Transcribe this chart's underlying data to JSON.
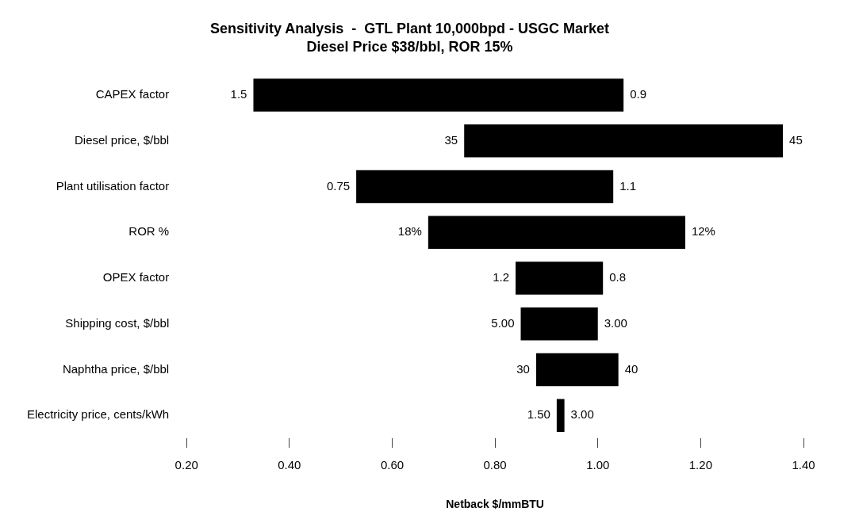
{
  "chart_data": {
    "type": "bar",
    "orientation": "horizontal",
    "title": "Sensitivity Analysis  -  GTL Plant 10,000bpd - USGC Market",
    "subtitle": "Diesel Price $38/bbl, ROR 15%",
    "xlabel": "Netback $/mmBTU",
    "categories": [
      "CAPEX factor",
      "Diesel price, $/bbl",
      "Plant utilisation factor",
      "ROR %",
      "OPEX factor",
      "Shipping cost, $/bbl",
      "Naphtha price, $/bbl",
      "Electricity price, cents/kWh"
    ],
    "base": [
      0.33,
      0.74,
      0.53,
      0.67,
      0.84,
      0.85,
      0.88,
      0.92
    ],
    "values": [
      0.72,
      0.62,
      0.5,
      0.5,
      0.17,
      0.15,
      0.16,
      0.015
    ],
    "color": "#000000",
    "xlim": [
      0.2,
      1.4
    ],
    "xticks": [
      {
        "value": 0.2,
        "label": "0.20"
      },
      {
        "value": 0.4,
        "label": "0.40"
      },
      {
        "value": 0.6,
        "label": "0.60"
      },
      {
        "value": 0.8,
        "label": "0.80"
      },
      {
        "value": 1.0,
        "label": "1.00"
      },
      {
        "value": 1.2,
        "label": "1.20"
      },
      {
        "value": 1.4,
        "label": "1.40"
      }
    ],
    "grid": false,
    "legend": false,
    "annotations": [
      {
        "text": "1.5",
        "x": 0.33,
        "y": "CAPEX factor"
      },
      {
        "text": "0.9",
        "x": 1.05,
        "y": "CAPEX factor"
      },
      {
        "text": "35",
        "x": 0.74,
        "y": "Diesel price, $/bbl"
      },
      {
        "text": "45",
        "x": 1.36,
        "y": "Diesel price, $/bbl"
      },
      {
        "text": "0.75",
        "x": 0.53,
        "y": "Plant utilisation factor"
      },
      {
        "text": "1.1",
        "x": 1.03,
        "y": "Plant utilisation factor"
      },
      {
        "text": "18%",
        "x": 0.67,
        "y": "ROR %"
      },
      {
        "text": "12%",
        "x": 1.17,
        "y": "ROR %"
      },
      {
        "text": "1.2",
        "x": 0.84,
        "y": "OPEX factor"
      },
      {
        "text": "0.8",
        "x": 1.01,
        "y": "OPEX factor"
      },
      {
        "text": "5.00",
        "x": 0.85,
        "y": "Shipping cost, $/bbl"
      },
      {
        "text": "3.00",
        "x": 1.0,
        "y": "Shipping cost, $/bbl"
      },
      {
        "text": "30",
        "x": 0.88,
        "y": "Naphtha price, $/bbl"
      },
      {
        "text": "40",
        "x": 1.04,
        "y": "Naphtha price, $/bbl"
      },
      {
        "text": "1.50",
        "x": 0.92,
        "y": "Electricity price, cents/kWh"
      },
      {
        "text": "3.00",
        "x": 0.935,
        "y": "Electricity price, cents/kWh"
      }
    ]
  }
}
